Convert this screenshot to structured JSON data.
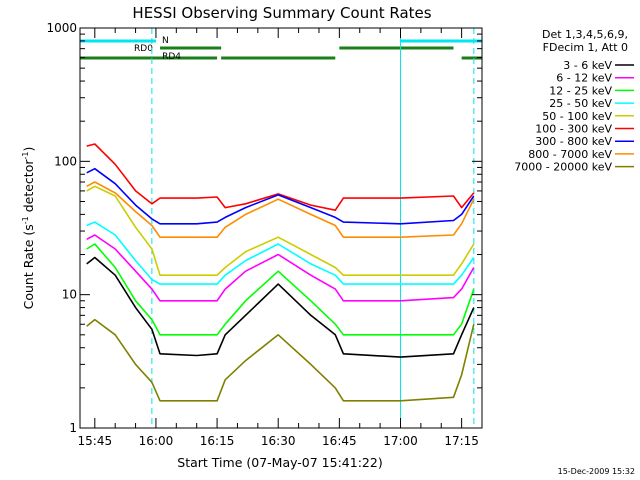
{
  "chart_data": {
    "type": "line",
    "title": "HESSI Observing Summary Count Rates",
    "xlabel": "Start Time (07-May-07 15:41:22)",
    "ylabel": "Count Rate (s",
    "ylabel_sup": "-1",
    "ylabel_end": " detector",
    "ylabel_sup2": "-1",
    "ylabel_close": ")",
    "y_scale": "log",
    "ylim": [
      1,
      1000
    ],
    "xlim": [
      "15:41:22",
      "17:20:00"
    ],
    "y_ticks": [
      "1",
      "10",
      "100",
      "1000"
    ],
    "x_ticks": [
      "15:45",
      "16:00",
      "16:15",
      "16:30",
      "16:45",
      "17:00",
      "17:15"
    ],
    "legend_header": [
      "Det 1,3,4,5,6,9,",
      "FDecim 1, Att 0"
    ],
    "legend_position": "right",
    "timestamp": "15-Dec-2009 15:32",
    "flag_bars": [
      {
        "label": "N",
        "color": "#00e5ee",
        "intervals": [
          [
            "15:41:22",
            "16:00"
          ],
          [
            "17:00",
            "17:20"
          ]
        ]
      },
      {
        "label": "RD0",
        "color": "#1a7f1a",
        "intervals": [
          [
            "16:01",
            "16:16"
          ],
          [
            "16:45",
            "17:13"
          ]
        ]
      },
      {
        "label": "RD4",
        "color": "#1a7f1a",
        "intervals": [
          [
            "15:41:22",
            "16:15"
          ],
          [
            "16:16",
            "16:44"
          ],
          [
            "17:15",
            "17:20"
          ]
        ]
      }
    ],
    "vertical_markers": [
      {
        "time": "15:41:22",
        "style": "solid",
        "color": "#00e5ee"
      },
      {
        "time": "15:59",
        "style": "dashed",
        "color": "#00e5ee"
      },
      {
        "time": "17:00",
        "style": "solid",
        "color": "#00e5ee"
      },
      {
        "time": "17:18",
        "style": "dashed",
        "color": "#00e5ee"
      }
    ],
    "series": [
      {
        "name": "3 - 6 keV",
        "color": "#000000",
        "values": [
          [
            "15:43",
            17
          ],
          [
            "15:45",
            19
          ],
          [
            "15:50",
            14
          ],
          [
            "15:55",
            8
          ],
          [
            "15:59",
            5.5
          ],
          [
            "16:01",
            3.6
          ],
          [
            "16:10",
            3.5
          ],
          [
            "16:15",
            3.6
          ],
          [
            "16:17",
            5
          ],
          [
            "16:22",
            7
          ],
          [
            "16:30",
            12
          ],
          [
            "16:38",
            7
          ],
          [
            "16:44",
            5
          ],
          [
            "16:46",
            3.6
          ],
          [
            "17:00",
            3.4
          ],
          [
            "17:13",
            3.6
          ],
          [
            "17:15",
            5
          ],
          [
            "17:18",
            8
          ]
        ]
      },
      {
        "name": "6 - 12 keV",
        "color": "#ff00ff",
        "values": [
          [
            "15:43",
            26
          ],
          [
            "15:45",
            28
          ],
          [
            "15:50",
            22
          ],
          [
            "15:55",
            15
          ],
          [
            "15:59",
            11
          ],
          [
            "16:01",
            9
          ],
          [
            "16:10",
            9
          ],
          [
            "16:15",
            9
          ],
          [
            "16:17",
            11
          ],
          [
            "16:22",
            15
          ],
          [
            "16:30",
            20
          ],
          [
            "16:38",
            14
          ],
          [
            "16:44",
            11
          ],
          [
            "16:46",
            9
          ],
          [
            "17:00",
            9
          ],
          [
            "17:13",
            9.5
          ],
          [
            "17:15",
            11
          ],
          [
            "17:18",
            16
          ]
        ]
      },
      {
        "name": "12 - 25 keV",
        "color": "#00ff00",
        "values": [
          [
            "15:43",
            22
          ],
          [
            "15:45",
            24
          ],
          [
            "15:50",
            16
          ],
          [
            "15:55",
            9
          ],
          [
            "15:59",
            6.5
          ],
          [
            "16:01",
            5
          ],
          [
            "16:10",
            5
          ],
          [
            "16:15",
            5
          ],
          [
            "16:17",
            6
          ],
          [
            "16:22",
            9
          ],
          [
            "16:30",
            15
          ],
          [
            "16:38",
            9
          ],
          [
            "16:44",
            6
          ],
          [
            "16:46",
            5
          ],
          [
            "17:00",
            5
          ],
          [
            "17:13",
            5
          ],
          [
            "17:15",
            6
          ],
          [
            "17:18",
            11
          ]
        ]
      },
      {
        "name": "25 - 50 keV",
        "color": "#00ffff",
        "values": [
          [
            "15:43",
            33
          ],
          [
            "15:45",
            35
          ],
          [
            "15:50",
            28
          ],
          [
            "15:55",
            18
          ],
          [
            "15:59",
            13
          ],
          [
            "16:01",
            12
          ],
          [
            "16:10",
            12
          ],
          [
            "16:15",
            12
          ],
          [
            "16:17",
            14
          ],
          [
            "16:22",
            18
          ],
          [
            "16:30",
            24
          ],
          [
            "16:38",
            17
          ],
          [
            "16:44",
            14
          ],
          [
            "16:46",
            12
          ],
          [
            "17:00",
            12
          ],
          [
            "17:13",
            12
          ],
          [
            "17:15",
            14
          ],
          [
            "17:18",
            19
          ]
        ]
      },
      {
        "name": "50 - 100 keV",
        "color": "#cccc00",
        "values": [
          [
            "15:43",
            60
          ],
          [
            "15:45",
            65
          ],
          [
            "15:50",
            55
          ],
          [
            "15:55",
            32
          ],
          [
            "15:59",
            22
          ],
          [
            "16:01",
            14
          ],
          [
            "16:10",
            14
          ],
          [
            "16:15",
            14
          ],
          [
            "16:17",
            16
          ],
          [
            "16:22",
            21
          ],
          [
            "16:30",
            27
          ],
          [
            "16:38",
            20
          ],
          [
            "16:44",
            16
          ],
          [
            "16:46",
            14
          ],
          [
            "17:00",
            14
          ],
          [
            "17:13",
            14
          ],
          [
            "17:15",
            17
          ],
          [
            "17:18",
            24
          ]
        ]
      },
      {
        "name": "100 - 300 keV",
        "color": "#ff0000",
        "values": [
          [
            "15:43",
            130
          ],
          [
            "15:45",
            135
          ],
          [
            "15:50",
            95
          ],
          [
            "15:55",
            60
          ],
          [
            "15:59",
            48
          ],
          [
            "16:01",
            53
          ],
          [
            "16:10",
            53
          ],
          [
            "16:15",
            54
          ],
          [
            "16:17",
            45
          ],
          [
            "16:22",
            48
          ],
          [
            "16:30",
            57
          ],
          [
            "16:38",
            47
          ],
          [
            "16:44",
            43
          ],
          [
            "16:46",
            53
          ],
          [
            "17:00",
            53
          ],
          [
            "17:13",
            55
          ],
          [
            "17:15",
            45
          ],
          [
            "17:18",
            58
          ]
        ]
      },
      {
        "name": "300 - 800 keV",
        "color": "#0000ff",
        "values": [
          [
            "15:43",
            82
          ],
          [
            "15:45",
            88
          ],
          [
            "15:50",
            68
          ],
          [
            "15:55",
            47
          ],
          [
            "15:59",
            37
          ],
          [
            "16:01",
            34
          ],
          [
            "16:10",
            34
          ],
          [
            "16:15",
            35
          ],
          [
            "16:17",
            38
          ],
          [
            "16:22",
            45
          ],
          [
            "16:30",
            56
          ],
          [
            "16:38",
            45
          ],
          [
            "16:44",
            38
          ],
          [
            "16:46",
            35
          ],
          [
            "17:00",
            34
          ],
          [
            "17:13",
            36
          ],
          [
            "17:15",
            40
          ],
          [
            "17:18",
            55
          ]
        ]
      },
      {
        "name": "800 - 7000 keV",
        "color": "#ff8c00",
        "values": [
          [
            "15:43",
            65
          ],
          [
            "15:45",
            70
          ],
          [
            "15:50",
            58
          ],
          [
            "15:55",
            42
          ],
          [
            "15:59",
            33
          ],
          [
            "16:01",
            27
          ],
          [
            "16:10",
            27
          ],
          [
            "16:15",
            27
          ],
          [
            "16:17",
            32
          ],
          [
            "16:22",
            40
          ],
          [
            "16:30",
            52
          ],
          [
            "16:38",
            40
          ],
          [
            "16:44",
            33
          ],
          [
            "16:46",
            27
          ],
          [
            "17:00",
            27
          ],
          [
            "17:13",
            28
          ],
          [
            "17:15",
            34
          ],
          [
            "17:18",
            52
          ]
        ]
      },
      {
        "name": "7000 - 20000 keV",
        "color": "#808000",
        "values": [
          [
            "15:43",
            5.8
          ],
          [
            "15:45",
            6.5
          ],
          [
            "15:50",
            5
          ],
          [
            "15:55",
            3
          ],
          [
            "15:59",
            2.2
          ],
          [
            "16:01",
            1.6
          ],
          [
            "16:10",
            1.6
          ],
          [
            "16:15",
            1.6
          ],
          [
            "16:17",
            2.3
          ],
          [
            "16:22",
            3.2
          ],
          [
            "16:30",
            5
          ],
          [
            "16:38",
            3
          ],
          [
            "16:44",
            2
          ],
          [
            "16:46",
            1.6
          ],
          [
            "17:00",
            1.6
          ],
          [
            "17:13",
            1.7
          ],
          [
            "17:15",
            2.5
          ],
          [
            "17:18",
            6
          ]
        ]
      }
    ]
  }
}
